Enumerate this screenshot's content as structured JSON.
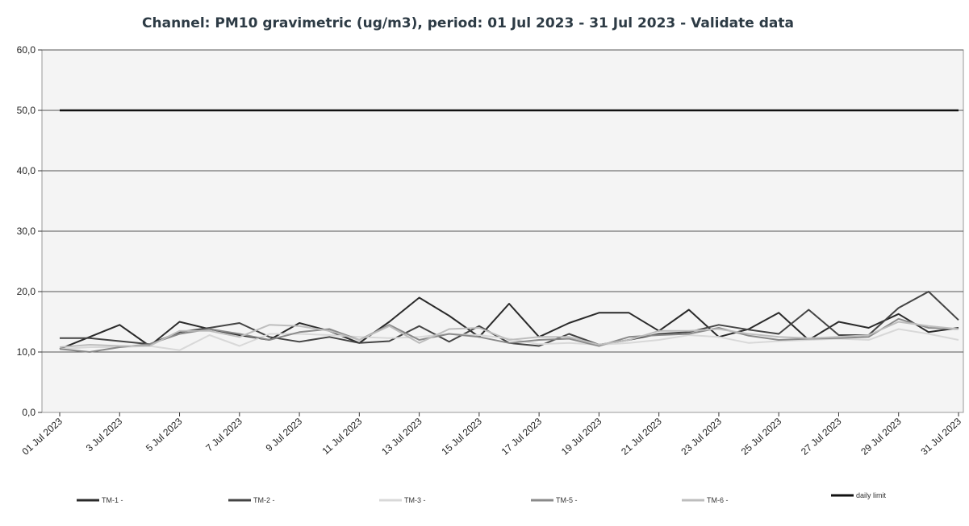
{
  "chart_data": {
    "type": "line",
    "title": "Channel: PM10 gravimetric (ug/m3), period: 01 Jul 2023 - 31 Jul 2023 - Validate data",
    "xlabel": "",
    "ylabel": "",
    "ylim": [
      0,
      60
    ],
    "yticks": [
      "0,0",
      "10,0",
      "20,0",
      "30,0",
      "40,0",
      "50,0",
      "60,0"
    ],
    "grid": true,
    "legend_position": "bottom",
    "x_tick_labels": [
      "01 Jul 2023",
      "3 Jul 2023",
      "5 Jul 2023",
      "7 Jul 2023",
      "9 Jul 2023",
      "11 Jul 2023",
      "13 Jul 2023",
      "15 Jul 2023",
      "17 Jul 2023",
      "19 Jul 2023",
      "21 Jul 2023",
      "23 Jul 2023",
      "25 Jul 2023",
      "27 Jul 2023",
      "29 Jul 2023",
      "31 Jul 2023"
    ],
    "x_days": [
      1,
      2,
      3,
      4,
      5,
      6,
      7,
      8,
      9,
      10,
      11,
      12,
      13,
      14,
      15,
      16,
      17,
      18,
      19,
      20,
      21,
      22,
      23,
      24,
      25,
      26,
      27,
      28,
      29,
      30,
      31
    ],
    "series": [
      {
        "name": "TM-1 -",
        "color": "#2a2a2a",
        "width": 2,
        "values": [
          10.5,
          12.5,
          14.5,
          11.0,
          15.0,
          13.8,
          12.8,
          12.0,
          14.8,
          13.5,
          11.5,
          15.0,
          19.0,
          16.0,
          12.5,
          18.0,
          12.5,
          14.8,
          16.5,
          16.5,
          13.5,
          17.0,
          12.5,
          13.8,
          16.5,
          12.0,
          15.0,
          14.0,
          16.3,
          13.3,
          14.0
        ]
      },
      {
        "name": "TM-2 -",
        "color": "#444444",
        "width": 2,
        "values": [
          12.3,
          12.3,
          11.8,
          11.3,
          13.3,
          14.0,
          14.8,
          12.5,
          11.7,
          12.5,
          11.5,
          11.8,
          14.3,
          11.7,
          14.3,
          11.5,
          11.0,
          13.0,
          11.2,
          12.0,
          13.0,
          13.3,
          14.5,
          13.7,
          13.0,
          17.0,
          12.8,
          12.8,
          17.3,
          20.0,
          15.3
        ]
      },
      {
        "name": "TM-3 -",
        "color": "#d8d8d8",
        "width": 2,
        "values": [
          10.5,
          10.8,
          10.8,
          11.0,
          10.3,
          12.8,
          11.0,
          13.0,
          13.0,
          12.8,
          12.5,
          12.3,
          12.5,
          13.0,
          12.8,
          12.2,
          11.3,
          11.5,
          11.2,
          11.5,
          12.0,
          12.8,
          12.5,
          11.5,
          11.8,
          12.0,
          12.2,
          12.0,
          13.8,
          13.0,
          12.0
        ]
      },
      {
        "name": "TM-5 -",
        "color": "#8a8a8a",
        "width": 2,
        "values": [
          10.5,
          10.0,
          10.8,
          11.3,
          13.0,
          13.8,
          13.0,
          12.0,
          13.3,
          13.8,
          12.0,
          14.5,
          12.0,
          13.0,
          12.5,
          11.5,
          12.0,
          12.2,
          11.0,
          12.5,
          12.8,
          13.0,
          14.0,
          12.7,
          12.0,
          12.2,
          12.3,
          12.5,
          15.5,
          14.0,
          13.8
        ]
      },
      {
        "name": "TM-6 -",
        "color": "#bdbdbd",
        "width": 2,
        "values": [
          10.8,
          11.2,
          11.0,
          11.0,
          13.5,
          13.5,
          12.5,
          14.5,
          14.3,
          13.5,
          12.0,
          14.3,
          11.5,
          13.8,
          14.0,
          12.0,
          12.5,
          12.5,
          11.2,
          12.0,
          13.5,
          13.5,
          13.8,
          13.0,
          12.5,
          12.3,
          12.5,
          12.8,
          15.0,
          14.3,
          13.8
        ]
      },
      {
        "name": "daily limit",
        "color": "#111111",
        "width": 2.4,
        "values": [
          50,
          50,
          50,
          50,
          50,
          50,
          50,
          50,
          50,
          50,
          50,
          50,
          50,
          50,
          50,
          50,
          50,
          50,
          50,
          50,
          50,
          50,
          50,
          50,
          50,
          50,
          50,
          50,
          50,
          50,
          50
        ]
      }
    ]
  }
}
